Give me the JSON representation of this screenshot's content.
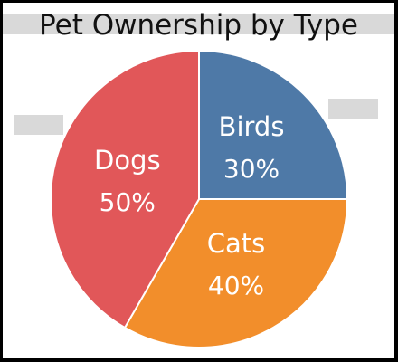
{
  "chart_data": {
    "type": "pie",
    "title": "Pet Ownership by Type",
    "slices": [
      {
        "label": "Birds",
        "value": 30,
        "display": "30%",
        "color": "#4e79a7"
      },
      {
        "label": "Cats",
        "value": 40,
        "display": "40%",
        "color": "#f28e2b"
      },
      {
        "label": "Dogs",
        "value": 50,
        "display": "50%",
        "color": "#e15759"
      }
    ],
    "start_angle_deg": 0,
    "direction": "clockwise",
    "legend": "none",
    "labels_position": "inside"
  }
}
